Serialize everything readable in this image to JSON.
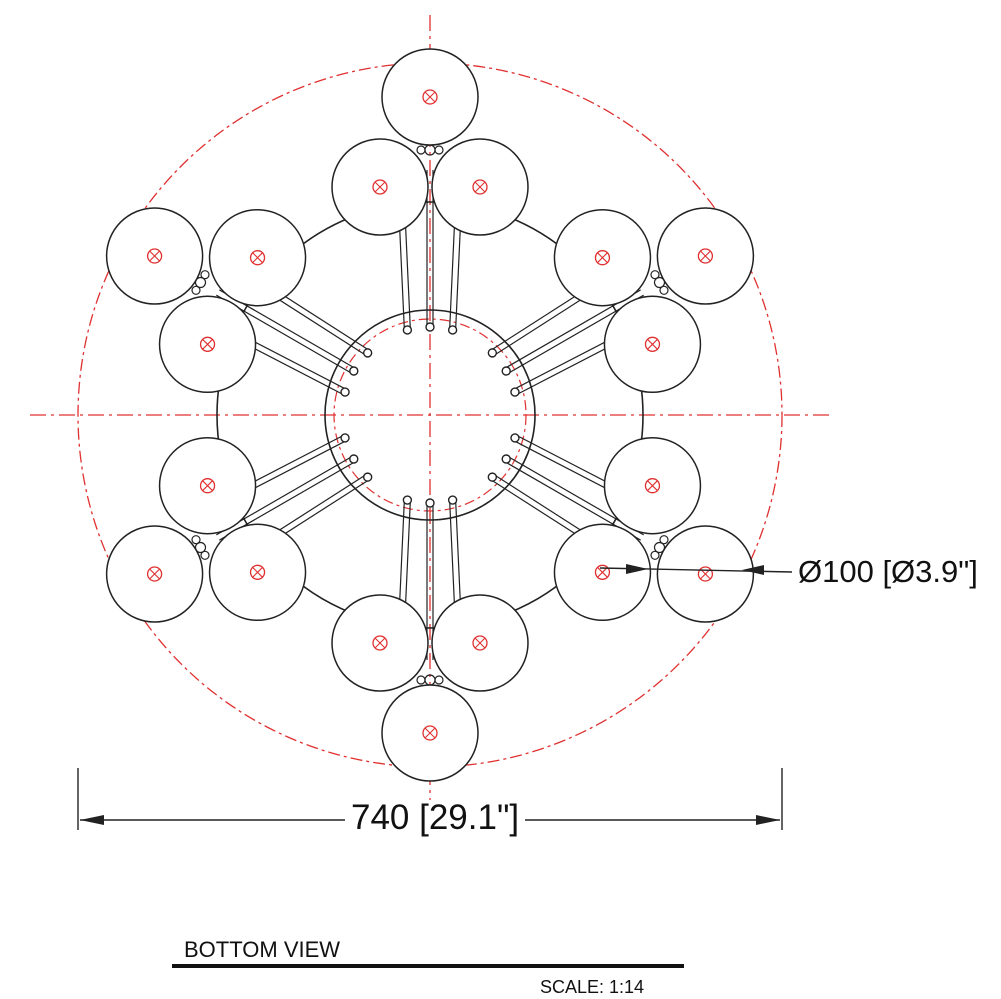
{
  "drawing": {
    "view_title": "BOTTOM VIEW",
    "scale": "SCALE: 1:14",
    "overall_dimension": "740 [29.1\"]",
    "wheel_diameter_dimension": "Ø100 [Ø3.9\"]",
    "colors": {
      "outline": "#222222",
      "centerline": "#e03030",
      "background": "#ffffff"
    },
    "features": {
      "wheel_count": 18,
      "spoke_groups": 6,
      "wheels_per_group": 3
    }
  }
}
